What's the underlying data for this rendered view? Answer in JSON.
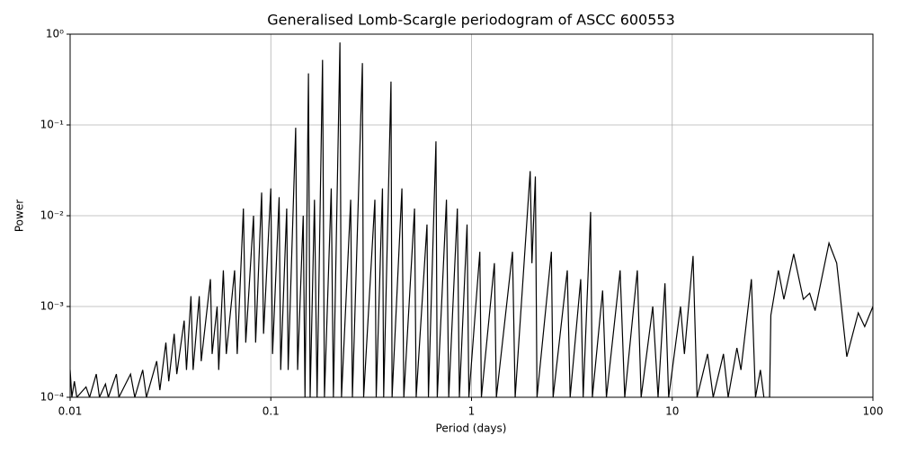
{
  "chart_data": {
    "type": "line",
    "title": "Generalised Lomb-Scargle periodogram of ASCC 600553",
    "x_label": "Period (days)",
    "y_label": "Power",
    "x": [
      0.01,
      0.0102,
      0.0105,
      0.0108,
      0.012,
      0.0125,
      0.0135,
      0.014,
      0.015,
      0.0155,
      0.017,
      0.0175,
      0.02,
      0.021,
      0.023,
      0.024,
      0.027,
      0.028,
      0.03,
      0.031,
      0.033,
      0.034,
      0.037,
      0.038,
      0.04,
      0.041,
      0.044,
      0.045,
      0.05,
      0.051,
      0.054,
      0.055,
      0.058,
      0.06,
      0.066,
      0.068,
      0.073,
      0.075,
      0.082,
      0.084,
      0.09,
      0.092,
      0.1,
      0.102,
      0.11,
      0.112,
      0.12,
      0.122,
      0.133,
      0.136,
      0.145,
      0.148,
      0.154,
      0.157,
      0.165,
      0.17,
      0.181,
      0.185,
      0.2,
      0.205,
      0.221,
      0.225,
      0.25,
      0.255,
      0.286,
      0.29,
      0.33,
      0.335,
      0.36,
      0.365,
      0.397,
      0.402,
      0.45,
      0.46,
      0.52,
      0.53,
      0.6,
      0.61,
      0.665,
      0.675,
      0.75,
      0.77,
      0.85,
      0.87,
      0.95,
      0.97,
      1.1,
      1.12,
      1.3,
      1.33,
      1.6,
      1.65,
      1.96,
      2.0,
      2.08,
      2.12,
      2.5,
      2.55,
      3.0,
      3.1,
      3.5,
      3.6,
      3.92,
      4.0,
      4.5,
      4.7,
      5.5,
      5.8,
      6.7,
      7.0,
      8.0,
      8.5,
      9.2,
      9.6,
      11,
      11.5,
      12.7,
      13.3,
      15,
      16,
      18,
      19,
      21,
      22,
      24.8,
      26,
      27.5,
      29,
      30.5,
      31,
      33.8,
      36,
      40.3,
      45,
      48.4,
      51.5,
      60.4,
      66,
      74.1,
      84.5,
      91,
      100
    ],
    "values": [
      0.0002,
      0.0001,
      0.00015,
      0.0001,
      0.00013,
      0.0001,
      0.00018,
      0.0001,
      0.00014,
      0.0001,
      0.00018,
      0.0001,
      0.00018,
      0.0001,
      0.0002,
      0.0001,
      0.00025,
      0.00012,
      0.0004,
      0.00015,
      0.0005,
      0.00018,
      0.0007,
      0.0002,
      0.0013,
      0.0002,
      0.0013,
      0.00025,
      0.002,
      0.0003,
      0.001,
      0.0002,
      0.0025,
      0.0003,
      0.0025,
      0.0003,
      0.012,
      0.0004,
      0.01,
      0.0004,
      0.018,
      0.0005,
      0.02,
      0.0003,
      0.016,
      0.0002,
      0.012,
      0.0002,
      0.093,
      0.0002,
      0.01,
      0.0001,
      0.37,
      0.0001,
      0.015,
      0.0001,
      0.52,
      0.0001,
      0.02,
      0.0001,
      0.81,
      0.0001,
      0.015,
      0.0001,
      0.48,
      0.0001,
      0.015,
      0.0001,
      0.02,
      0.0001,
      0.3,
      0.0001,
      0.02,
      0.0001,
      0.012,
      0.0001,
      0.008,
      0.0001,
      0.066,
      0.0001,
      0.015,
      0.0001,
      0.012,
      0.0001,
      0.008,
      0.0001,
      0.004,
      0.0001,
      0.003,
      0.0001,
      0.004,
      0.0001,
      0.031,
      0.003,
      0.027,
      0.0001,
      0.004,
      0.0001,
      0.0025,
      0.0001,
      0.002,
      0.0001,
      0.011,
      0.0001,
      0.0015,
      0.0001,
      0.0025,
      0.0001,
      0.0025,
      0.0001,
      0.001,
      0.0001,
      0.0018,
      0.0001,
      0.001,
      0.0003,
      0.0036,
      0.0001,
      0.0003,
      0.0001,
      0.0003,
      0.0001,
      0.00035,
      0.0002,
      0.002,
      0.0001,
      0.0002,
      8e-05,
      8e-05,
      0.0008,
      0.0025,
      0.0012,
      0.0038,
      0.0012,
      0.0014,
      0.0009,
      0.005,
      0.003,
      0.00028,
      0.00085,
      0.0006,
      0.001
    ],
    "color": "#000000",
    "x_scale": "log",
    "y_scale": "log",
    "xlim": [
      0.01,
      100
    ],
    "xticks": [
      0.01,
      0.1,
      1,
      10,
      100
    ],
    "ylim": [
      0.0001,
      1
    ],
    "yticks": [
      {
        "value": 0.0001,
        "label": "10⁻⁴"
      },
      {
        "value": 0.001,
        "label": "10⁻³"
      },
      {
        "value": 0.01,
        "label": "10⁻²"
      },
      {
        "value": 0.1,
        "label": "10⁻¹"
      },
      {
        "value": 1,
        "label": "10⁰"
      }
    ],
    "grid": true
  }
}
